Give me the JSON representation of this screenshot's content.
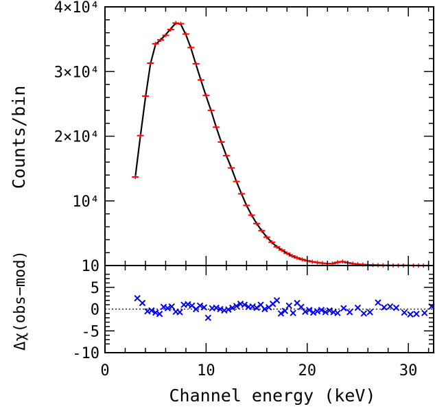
{
  "chart_data": [
    {
      "type": "scatter",
      "panel": "spectrum",
      "xlabel": "",
      "ylabel": "Counts/bin",
      "xlim": [
        0,
        32.5
      ],
      "ylim": [
        10,
        40000
      ],
      "xticks": [
        0,
        10,
        20,
        30
      ],
      "yticks": [
        10000,
        20000,
        30000,
        40000
      ],
      "ytick_labels": [
        "10⁴",
        "2×10⁴",
        "3×10⁴",
        "4×10⁴"
      ],
      "ytick_lower_label": "10",
      "grid": false,
      "colors": {
        "data": "#ff0000",
        "model": "#000000"
      },
      "series": [
        {
          "type": "errorbar",
          "x": [
            3.0,
            3.5,
            4.0,
            4.5,
            5.0,
            5.5,
            6.0,
            6.5,
            7.0,
            7.5,
            8.0,
            8.5,
            9.0,
            9.5,
            10.0,
            10.5,
            11.0,
            11.5,
            12.0,
            12.5,
            13.0,
            13.5,
            14.0,
            14.5,
            15.0,
            15.5,
            16.0,
            16.5,
            17.0,
            17.5,
            18.0,
            18.5,
            19.0,
            19.5,
            20.0,
            20.5,
            21.0,
            21.5,
            22.0,
            22.5,
            23.0,
            23.5,
            24.0,
            24.5,
            25.0,
            25.5,
            26.0,
            26.5,
            27.0,
            27.5,
            28.0,
            28.5,
            29.0,
            29.5,
            30.0,
            30.5,
            31.0,
            31.5,
            32.0
          ],
          "y": [
            13700,
            20100,
            26200,
            31300,
            34300,
            34900,
            35600,
            36500,
            37500,
            37400,
            35800,
            33700,
            31200,
            28700,
            26300,
            24000,
            21400,
            19100,
            17000,
            15100,
            13000,
            11100,
            9300,
            7800,
            6500,
            5400,
            4400,
            3600,
            2900,
            2400,
            1900,
            1500,
            1200,
            950,
            750,
            600,
            480,
            380,
            310,
            320,
            520,
            620,
            430,
            300,
            210,
            160,
            120,
            90,
            70,
            55,
            45,
            35,
            28,
            22,
            18,
            15,
            12,
            10,
            8
          ]
        },
        {
          "type": "line",
          "x": [
            3.0,
            3.5,
            4.0,
            4.5,
            5.0,
            5.5,
            6.0,
            6.5,
            7.0,
            7.5,
            8.0,
            8.5,
            9.0,
            9.5,
            10.0,
            10.5,
            11.0,
            11.5,
            12.0,
            12.5,
            13.0,
            13.5,
            14.0,
            14.5,
            15.0,
            15.5,
            16.0,
            16.5,
            17.0,
            17.5,
            18.0,
            18.5,
            19.0,
            19.5,
            20.0,
            20.5,
            21.0,
            21.5,
            22.0,
            22.5,
            23.0,
            23.5,
            24.0,
            24.5,
            25.0,
            25.5,
            26.0,
            26.5,
            27.0,
            27.5,
            28.0,
            28.5,
            29.0,
            29.5,
            30.0,
            30.5,
            31.0,
            31.5,
            32.0
          ],
          "y": [
            13700,
            20000,
            26000,
            31200,
            34200,
            34900,
            35700,
            36600,
            37500,
            37300,
            35700,
            33600,
            31100,
            28600,
            26200,
            23900,
            21400,
            19100,
            17000,
            15100,
            13000,
            11100,
            9300,
            7800,
            6500,
            5400,
            4400,
            3600,
            2900,
            2400,
            1900,
            1500,
            1200,
            950,
            750,
            600,
            480,
            380,
            310,
            320,
            520,
            620,
            430,
            300,
            210,
            160,
            120,
            90,
            70,
            55,
            45,
            35,
            28,
            22,
            18,
            15,
            12,
            10,
            8
          ]
        }
      ]
    },
    {
      "type": "scatter",
      "panel": "residuals",
      "xlabel": "Channel energy (keV)",
      "ylabel": "Δχ(obs−mod)",
      "xlim": [
        0,
        32.5
      ],
      "ylim": [
        -10,
        10
      ],
      "xticks": [
        0,
        10,
        20,
        30
      ],
      "yticks": [
        -10,
        -5,
        0,
        5,
        10
      ],
      "zero_line": "dotted",
      "grid": false,
      "colors": {
        "residual": "#0000ff"
      },
      "series": [
        {
          "type": "scatter",
          "marker": "x",
          "x": [
            3.2,
            3.7,
            4.2,
            4.6,
            5.0,
            5.4,
            5.8,
            6.2,
            6.6,
            7.0,
            7.4,
            7.8,
            8.2,
            8.6,
            9.0,
            9.4,
            9.8,
            10.2,
            10.6,
            11.0,
            11.4,
            11.8,
            12.2,
            12.6,
            13.0,
            13.4,
            13.8,
            14.2,
            14.6,
            15.0,
            15.4,
            15.8,
            16.2,
            16.6,
            17.0,
            17.4,
            17.8,
            18.2,
            18.6,
            19.0,
            19.4,
            19.8,
            20.2,
            20.6,
            21.0,
            21.4,
            21.8,
            22.2,
            22.6,
            23.0,
            23.6,
            24.2,
            25.0,
            25.6,
            26.2,
            27.0,
            27.6,
            28.2,
            28.8,
            29.6,
            30.2,
            30.8,
            31.6,
            32.3
          ],
          "y": [
            2.5,
            1.4,
            -0.5,
            -0.3,
            -0.8,
            -1.1,
            0.5,
            0.2,
            0.6,
            -0.6,
            -0.7,
            1.0,
            1.1,
            0.8,
            0.0,
            0.8,
            0.4,
            -2.0,
            0.2,
            0.3,
            0.0,
            -0.3,
            -0.1,
            0.3,
            0.7,
            1.2,
            1.0,
            0.5,
            0.6,
            0.3,
            1.0,
            0.0,
            0.4,
            1.2,
            2.0,
            -1.0,
            -0.4,
            0.8,
            -0.9,
            1.4,
            0.5,
            -0.6,
            -0.2,
            -0.8,
            -0.5,
            -0.2,
            -0.7,
            -0.3,
            -0.7,
            -0.9,
            0.2,
            -0.7,
            0.3,
            -1.0,
            -0.7,
            1.5,
            0.4,
            0.6,
            0.3,
            -0.8,
            -1.2,
            -1.1,
            -0.9,
            0.6
          ]
        }
      ]
    }
  ]
}
